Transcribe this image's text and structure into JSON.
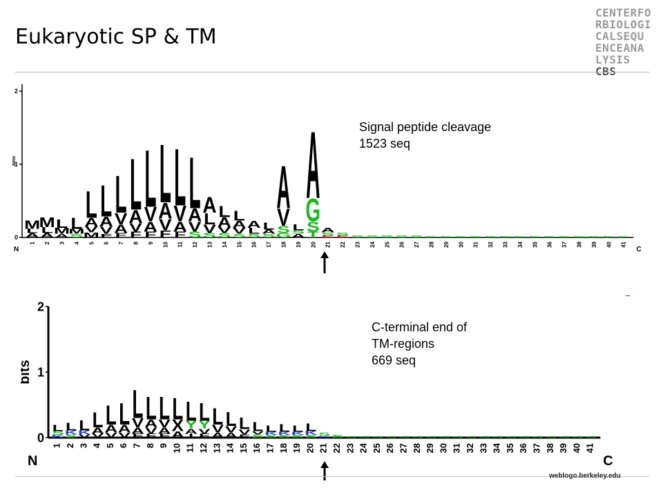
{
  "slide": {
    "title": "Eukaryotic SP & TM"
  },
  "logo": {
    "lines": [
      "CENTERFO",
      "RBIOLOGI",
      "CALSEQU",
      "ENCEANA"
    ],
    "last_line": "LYSIS",
    "last_bold": "CBS"
  },
  "notes": {
    "top": "Signal peptide cleavage\n1523 seq",
    "bottom": "C-terminal end of\nTM-regions\n669 seq"
  },
  "credit": "weblogo.berkeley.edu",
  "colors": {
    "hydrophobic": "#000000",
    "polar": "#1db81d",
    "basic": "#2a3fd0",
    "acidic": "#d01c1c",
    "amide": "#b02ab0"
  },
  "chart_data": [
    {
      "type": "sequence-logo",
      "ylabel": "bits",
      "ylim": [
        0,
        2
      ],
      "yticks": [
        "0",
        "1",
        "2"
      ],
      "n_label": "N",
      "c_label": "C",
      "positions": [
        "1",
        "2",
        "3",
        "4",
        "5",
        "6",
        "7",
        "8",
        "9",
        "10",
        "11",
        "12",
        "13",
        "14",
        "15",
        "16",
        "17",
        "18",
        "19",
        "20",
        "21",
        "22",
        "23",
        "24",
        "25",
        "26",
        "27",
        "28",
        "29",
        "30",
        "31",
        "32",
        "33",
        "34",
        "35",
        "36",
        "37",
        "38",
        "39",
        "40",
        "41"
      ],
      "marker_position": "21",
      "stacks": [
        [
          [
            "M",
            0.12
          ],
          [
            "A",
            0.06
          ],
          [
            "L",
            0.06
          ]
        ],
        [
          [
            "M",
            0.14
          ],
          [
            "L",
            0.08
          ],
          [
            "A",
            0.06
          ]
        ],
        [
          [
            "L",
            0.12
          ],
          [
            "M",
            0.08
          ],
          [
            "A",
            0.05
          ]
        ],
        [
          [
            "L",
            0.16
          ],
          [
            "M",
            0.07
          ],
          [
            "S",
            0.05
          ]
        ],
        [
          [
            "L",
            0.38
          ],
          [
            "A",
            0.12
          ],
          [
            "V",
            0.08
          ],
          [
            "M",
            0.07
          ]
        ],
        [
          [
            "L",
            0.44
          ],
          [
            "A",
            0.14
          ],
          [
            "V",
            0.1
          ],
          [
            "F",
            0.05
          ]
        ],
        [
          [
            "L",
            0.52
          ],
          [
            "V",
            0.16
          ],
          [
            "A",
            0.12
          ],
          [
            "F",
            0.06
          ]
        ],
        [
          [
            "L",
            0.72
          ],
          [
            "A",
            0.18
          ],
          [
            "V",
            0.12
          ],
          [
            "F",
            0.08
          ]
        ],
        [
          [
            "L",
            0.8
          ],
          [
            "V",
            0.2
          ],
          [
            "A",
            0.14
          ],
          [
            "F",
            0.08
          ]
        ],
        [
          [
            "L",
            0.82
          ],
          [
            "A",
            0.22
          ],
          [
            "V",
            0.16
          ],
          [
            "F",
            0.1
          ]
        ],
        [
          [
            "L",
            0.8
          ],
          [
            "V",
            0.22
          ],
          [
            "A",
            0.14
          ],
          [
            "F",
            0.08
          ]
        ],
        [
          [
            "L",
            0.72
          ],
          [
            "A",
            0.18
          ],
          [
            "V",
            0.14
          ],
          [
            "S",
            0.08
          ]
        ],
        [
          [
            "A",
            0.22
          ],
          [
            "L",
            0.16
          ],
          [
            "V",
            0.12
          ],
          [
            "S",
            0.06
          ]
        ],
        [
          [
            "L",
            0.16
          ],
          [
            "A",
            0.14
          ],
          [
            "V",
            0.08
          ],
          [
            "S",
            0.06
          ]
        ],
        [
          [
            "L",
            0.14
          ],
          [
            "A",
            0.1
          ],
          [
            "V",
            0.08
          ],
          [
            "S",
            0.05
          ]
        ],
        [
          [
            "A",
            0.1
          ],
          [
            "L",
            0.08
          ],
          [
            "S",
            0.05
          ]
        ],
        [
          [
            "L",
            0.1
          ],
          [
            "A",
            0.06
          ],
          [
            "S",
            0.05
          ]
        ],
        [
          [
            "A",
            0.6
          ],
          [
            "V",
            0.24
          ],
          [
            "S",
            0.1
          ],
          [
            "G",
            0.06
          ]
        ],
        [
          [
            "L",
            0.08
          ],
          [
            "A",
            0.05
          ],
          [
            "S",
            0.05
          ]
        ],
        [
          [
            "A",
            0.94
          ],
          [
            "G",
            0.32
          ],
          [
            "S",
            0.14
          ],
          [
            "T",
            0.08
          ]
        ],
        [
          [
            "A",
            0.06
          ],
          [
            "S",
            0.04
          ],
          [
            "E",
            0.03
          ]
        ],
        [
          [
            "S",
            0.04
          ],
          [
            "E",
            0.03
          ]
        ],
        [
          [
            "S",
            0.03
          ]
        ],
        [
          [
            "S",
            0.03
          ]
        ],
        [
          [
            "S",
            0.03
          ]
        ],
        [
          [
            "S",
            0.03
          ]
        ],
        [
          [
            "S",
            0.03
          ]
        ],
        [
          [
            "S",
            0.02
          ]
        ],
        [
          [
            "S",
            0.02
          ]
        ],
        [
          [
            "S",
            0.02
          ]
        ],
        [
          [
            "S",
            0.02
          ]
        ],
        [
          [
            "S",
            0.02
          ]
        ],
        [
          [
            "S",
            0.02
          ]
        ],
        [
          [
            "S",
            0.02
          ]
        ],
        [
          [
            "S",
            0.02
          ]
        ],
        [
          [
            "S",
            0.02
          ]
        ],
        [
          [
            "S",
            0.02
          ]
        ],
        [
          [
            "S",
            0.02
          ]
        ],
        [
          [
            "S",
            0.02
          ]
        ],
        [
          [
            "S",
            0.02
          ]
        ],
        [
          [
            "S",
            0.02
          ]
        ]
      ]
    },
    {
      "type": "sequence-logo",
      "ylabel": "bits",
      "ylim": [
        0,
        2
      ],
      "yticks": [
        "0",
        "1",
        "2"
      ],
      "n_label": "N",
      "c_label": "C",
      "positions": [
        "1",
        "2",
        "3",
        "4",
        "5",
        "6",
        "7",
        "8",
        "9",
        "10",
        "11",
        "12",
        "13",
        "14",
        "15",
        "16",
        "17",
        "18",
        "19",
        "20",
        "21",
        "22",
        "23",
        "24",
        "25",
        "26",
        "27",
        "28",
        "29",
        "30",
        "31",
        "32",
        "33",
        "34",
        "35",
        "36",
        "37",
        "38",
        "39",
        "40",
        "41"
      ],
      "marker_position": "21",
      "stacks": [
        [
          [
            "L",
            0.1
          ],
          [
            "S",
            0.06
          ],
          [
            "K",
            0.04
          ]
        ],
        [
          [
            "L",
            0.12
          ],
          [
            "K",
            0.06
          ],
          [
            "S",
            0.05
          ]
        ],
        [
          [
            "L",
            0.16
          ],
          [
            "K",
            0.06
          ],
          [
            "V",
            0.05
          ]
        ],
        [
          [
            "L",
            0.24
          ],
          [
            "A",
            0.1
          ],
          [
            "V",
            0.06
          ]
        ],
        [
          [
            "L",
            0.3
          ],
          [
            "A",
            0.12
          ],
          [
            "V",
            0.08
          ]
        ],
        [
          [
            "L",
            0.34
          ],
          [
            "A",
            0.12
          ],
          [
            "V",
            0.08
          ]
        ],
        [
          [
            "L",
            0.44
          ],
          [
            "V",
            0.14
          ],
          [
            "A",
            0.1
          ],
          [
            "F",
            0.06
          ]
        ],
        [
          [
            "L",
            0.36
          ],
          [
            "A",
            0.12
          ],
          [
            "V",
            0.1
          ],
          [
            "F",
            0.06
          ]
        ],
        [
          [
            "L",
            0.36
          ],
          [
            "V",
            0.12
          ],
          [
            "A",
            0.1
          ],
          [
            "F",
            0.06
          ]
        ],
        [
          [
            "L",
            0.34
          ],
          [
            "X",
            0.18
          ],
          [
            "A",
            0.1
          ]
        ],
        [
          [
            "L",
            0.3
          ],
          [
            "Y",
            0.12
          ],
          [
            "A",
            0.08
          ],
          [
            "I",
            0.06
          ]
        ],
        [
          [
            "L",
            0.28
          ],
          [
            "Y",
            0.12
          ],
          [
            "V",
            0.08
          ],
          [
            "F",
            0.06
          ]
        ],
        [
          [
            "L",
            0.26
          ],
          [
            "V",
            0.12
          ],
          [
            "A",
            0.08
          ]
        ],
        [
          [
            "L",
            0.22
          ],
          [
            "V",
            0.1
          ],
          [
            "A",
            0.08
          ]
        ],
        [
          [
            "L",
            0.18
          ],
          [
            "V",
            0.08
          ],
          [
            "F",
            0.05
          ]
        ],
        [
          [
            "L",
            0.14
          ],
          [
            "S",
            0.05
          ],
          [
            "V",
            0.05
          ]
        ],
        [
          [
            "L",
            0.1
          ],
          [
            "K",
            0.05
          ],
          [
            "S",
            0.04
          ]
        ],
        [
          [
            "L",
            0.12
          ],
          [
            "K",
            0.05
          ],
          [
            "S",
            0.04
          ]
        ],
        [
          [
            "L",
            0.1
          ],
          [
            "K",
            0.05
          ],
          [
            "S",
            0.04
          ]
        ],
        [
          [
            "L",
            0.12
          ],
          [
            "K",
            0.06
          ],
          [
            "S",
            0.04
          ]
        ],
        [
          [
            "S",
            0.05
          ],
          [
            "K",
            0.03
          ]
        ],
        [
          [
            "S",
            0.04
          ]
        ],
        [
          [
            "S",
            0.02
          ]
        ],
        [
          [
            "S",
            0.02
          ]
        ],
        [
          [
            "S",
            0.02
          ]
        ],
        [
          [
            "S",
            0.02
          ]
        ],
        [
          [
            "S",
            0.02
          ]
        ],
        [
          [
            "S",
            0.02
          ]
        ],
        [
          [
            "S",
            0.02
          ]
        ],
        [
          [
            "S",
            0.02
          ]
        ],
        [
          [
            "S",
            0.02
          ]
        ],
        [
          [
            "S",
            0.02
          ]
        ],
        [
          [
            "S",
            0.02
          ]
        ],
        [
          [
            "S",
            0.02
          ]
        ],
        [
          [
            "S",
            0.02
          ]
        ],
        [
          [
            "S",
            0.02
          ]
        ],
        [
          [
            "S",
            0.02
          ]
        ],
        [
          [
            "S",
            0.02
          ]
        ],
        [
          [
            "S",
            0.02
          ]
        ],
        [
          [
            "S",
            0.02
          ]
        ],
        [
          [
            "S",
            0.02
          ]
        ]
      ]
    }
  ]
}
